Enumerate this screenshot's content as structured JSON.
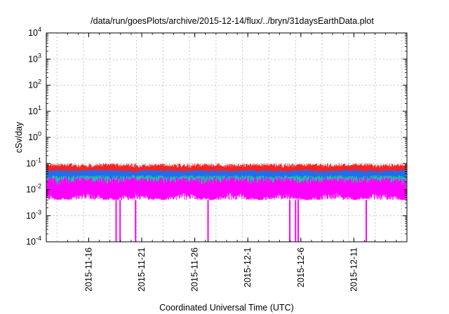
{
  "chart_data": {
    "type": "line",
    "title": "/data/run/goesPlots/archive/2015-12-14/flux/../bryn/31daysEarthData.plot",
    "xlabel": "Coordinated Universal Time (UTC)",
    "ylabel": "cSv/day",
    "yscale": "log",
    "ylim": [
      0.0001,
      10000
    ],
    "xlim": [
      "2015-11-12",
      "2015-12-16"
    ],
    "grid": true,
    "xticks": [
      {
        "date": "2015-11-16",
        "label": "2015-11-16"
      },
      {
        "date": "2015-11-21",
        "label": "2015-11-21"
      },
      {
        "date": "2015-11-26",
        "label": "2015-11-26"
      },
      {
        "date": "2015-12-01",
        "label": "2015-12-1"
      },
      {
        "date": "2015-12-06",
        "label": "2015-12-6"
      },
      {
        "date": "2015-12-11",
        "label": "2015-12-11"
      }
    ],
    "yticks": [
      {
        "value": 0.0001,
        "base": "10",
        "exp": "-4"
      },
      {
        "value": 0.001,
        "base": "10",
        "exp": "-3"
      },
      {
        "value": 0.01,
        "base": "10",
        "exp": "-2"
      },
      {
        "value": 0.1,
        "base": "10",
        "exp": "-1"
      },
      {
        "value": 1,
        "base": "10",
        "exp": "0"
      },
      {
        "value": 10,
        "base": "10",
        "exp": "1"
      },
      {
        "value": 100,
        "base": "10",
        "exp": "2"
      },
      {
        "value": 1000,
        "base": "10",
        "exp": "3"
      },
      {
        "value": 10000,
        "base": "10",
        "exp": "4"
      }
    ],
    "series": [
      {
        "color": "#ff2020",
        "min": 0.03,
        "max": 0.1
      },
      {
        "color": "#1e6ef0",
        "min": 0.02,
        "max": 0.06
      },
      {
        "color": "#20c0a0",
        "min": 0.012,
        "max": 0.035
      },
      {
        "color": "#ff00ff",
        "min": 0.004,
        "max": 0.03,
        "dips": [
          "2015-11-18T14:00",
          "2015-11-18T23:00",
          "2015-11-20T10:00",
          "2015-11-27T06:00",
          "2015-12-04T23:00",
          "2015-12-05T12:00",
          "2015-12-05T18:00",
          "2015-12-12T04:00"
        ],
        "dip_value": 0.0001
      }
    ]
  }
}
